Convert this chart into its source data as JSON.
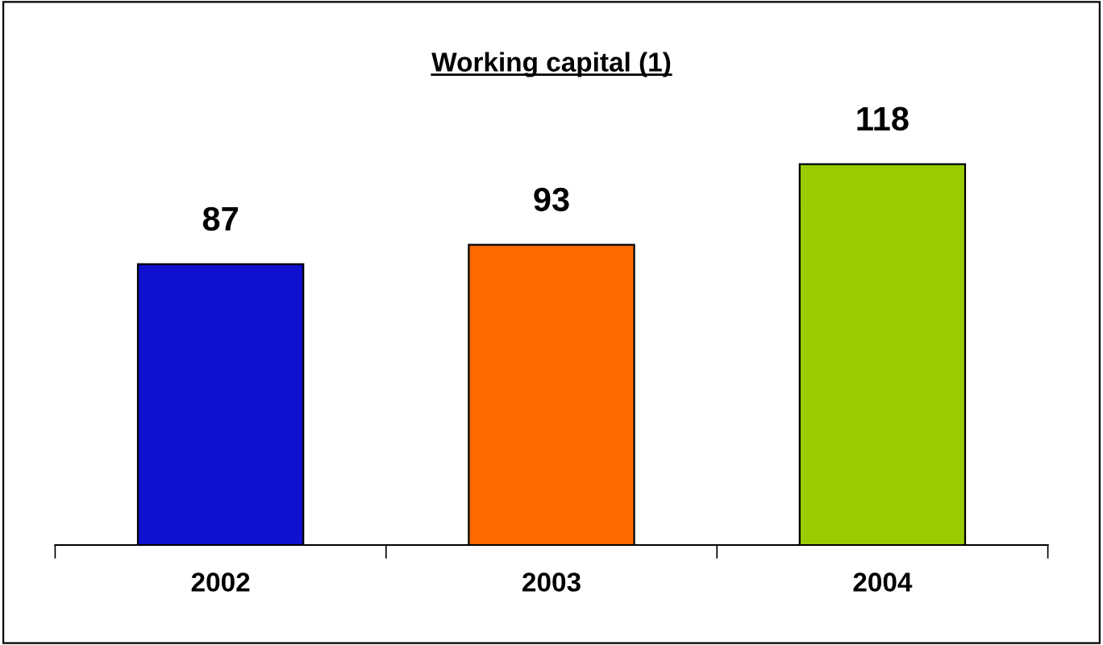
{
  "chart_data": {
    "type": "bar",
    "title": "Working capital (1)",
    "categories": [
      "2002",
      "2003",
      "2004"
    ],
    "values": [
      87,
      93,
      118
    ],
    "colors": [
      "#1010d0",
      "#ff6a00",
      "#99cc00"
    ],
    "data_labels": true,
    "grid": false,
    "legend": false,
    "tick_labels": "x"
  }
}
